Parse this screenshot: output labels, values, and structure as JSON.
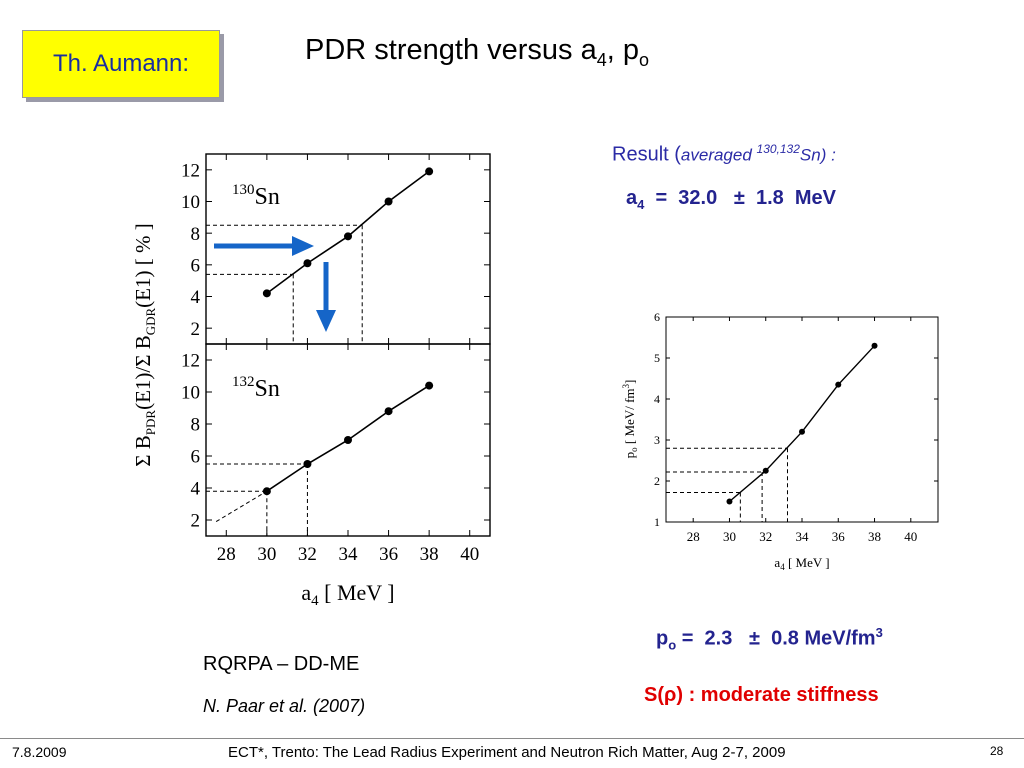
{
  "slide": {
    "author": "Th. Aumann:",
    "title_main": "PDR strength  versus a",
    "title_sub4": "4",
    "title_mid": ", p",
    "title_subo": "o",
    "result_prefix": "Result  (",
    "result_italic": "averaged ",
    "result_sup": "130,132",
    "result_tail": "Sn) :",
    "a4_label": "a",
    "a4_sub": "4",
    "a4_value": "  =  32.0   ±  1.8  MeV",
    "po_label": "p",
    "po_sub": "o",
    "po_value": " =  2.3   ±  0.8 MeV/fm",
    "po_sup": "3",
    "stiffness": "S(ρ) : moderate stiffness",
    "model": "RQRPA – DD-ME",
    "reference": "N. Paar et al. (2007)"
  },
  "footer": {
    "date": "7.8.2009",
    "conference": "ECT*, Trento: The Lead Radius Experiment and Neutron Rich Matter, Aug 2-7, 2009",
    "page": "28"
  },
  "colors": {
    "arrow": "#1565c8",
    "result_text": "#2b2ba6",
    "stiffness": "#e00000",
    "author_box": "#ffff00"
  },
  "chart_data": [
    {
      "type": "line",
      "panel_label": "130",
      "panel_label_tail": "Sn",
      "x": [
        30,
        32,
        34,
        36,
        38
      ],
      "y": [
        4.2,
        6.1,
        7.8,
        10.0,
        11.9
      ],
      "xlim": [
        27,
        41
      ],
      "ylim": [
        1,
        13
      ],
      "yticks": [
        "2",
        "4",
        "6",
        "8",
        "10",
        "12"
      ],
      "xticks": [
        "28",
        "30",
        "32",
        "34",
        "36",
        "38",
        "40"
      ],
      "ylabel_shared": "Σ B",
      "ylabel_sub1": "PDR",
      "ylabel_mid": "(E1)/Σ B",
      "ylabel_sub2": "GDR",
      "ylabel_tail": "(E1) [ % ]",
      "xlabel_main": "a",
      "xlabel_sub": "4",
      "xlabel_tail": " [ MeV ]",
      "band_y": [
        5.4,
        8.5
      ],
      "band_x": [
        31.3,
        34.7
      ]
    },
    {
      "type": "line",
      "panel_label": "132",
      "panel_label_tail": "Sn",
      "x": [
        30,
        32,
        34,
        36,
        38
      ],
      "y": [
        3.8,
        5.5,
        7.0,
        8.8,
        10.4
      ],
      "xlim": [
        27,
        41
      ],
      "ylim": [
        1,
        13
      ],
      "yticks": [
        "2",
        "4",
        "6",
        "8",
        "10",
        "12"
      ],
      "band_y": [
        3.8,
        5.5
      ],
      "band_x": [
        30,
        32
      ]
    },
    {
      "type": "line",
      "x": [
        30,
        32,
        34,
        36,
        38
      ],
      "y": [
        1.5,
        2.25,
        3.2,
        4.35,
        5.3
      ],
      "xlim": [
        26.5,
        41.5
      ],
      "ylim": [
        1,
        6
      ],
      "yticks": [
        "1",
        "2",
        "3",
        "4",
        "5",
        "6"
      ],
      "xticks": [
        "28",
        "30",
        "32",
        "34",
        "36",
        "38",
        "40"
      ],
      "ylabel_main": "p",
      "ylabel_sub": "o",
      "ylabel_tail": " [ MeV/ fm",
      "ylabel_sup": "3",
      "ylabel_end": "]",
      "xlabel_main": "a",
      "xlabel_sub": "4",
      "xlabel_tail": " [ MeV ]",
      "band_y": [
        1.72,
        2.22,
        2.8
      ],
      "band_x": [
        30.6,
        31.8,
        33.2
      ]
    }
  ]
}
